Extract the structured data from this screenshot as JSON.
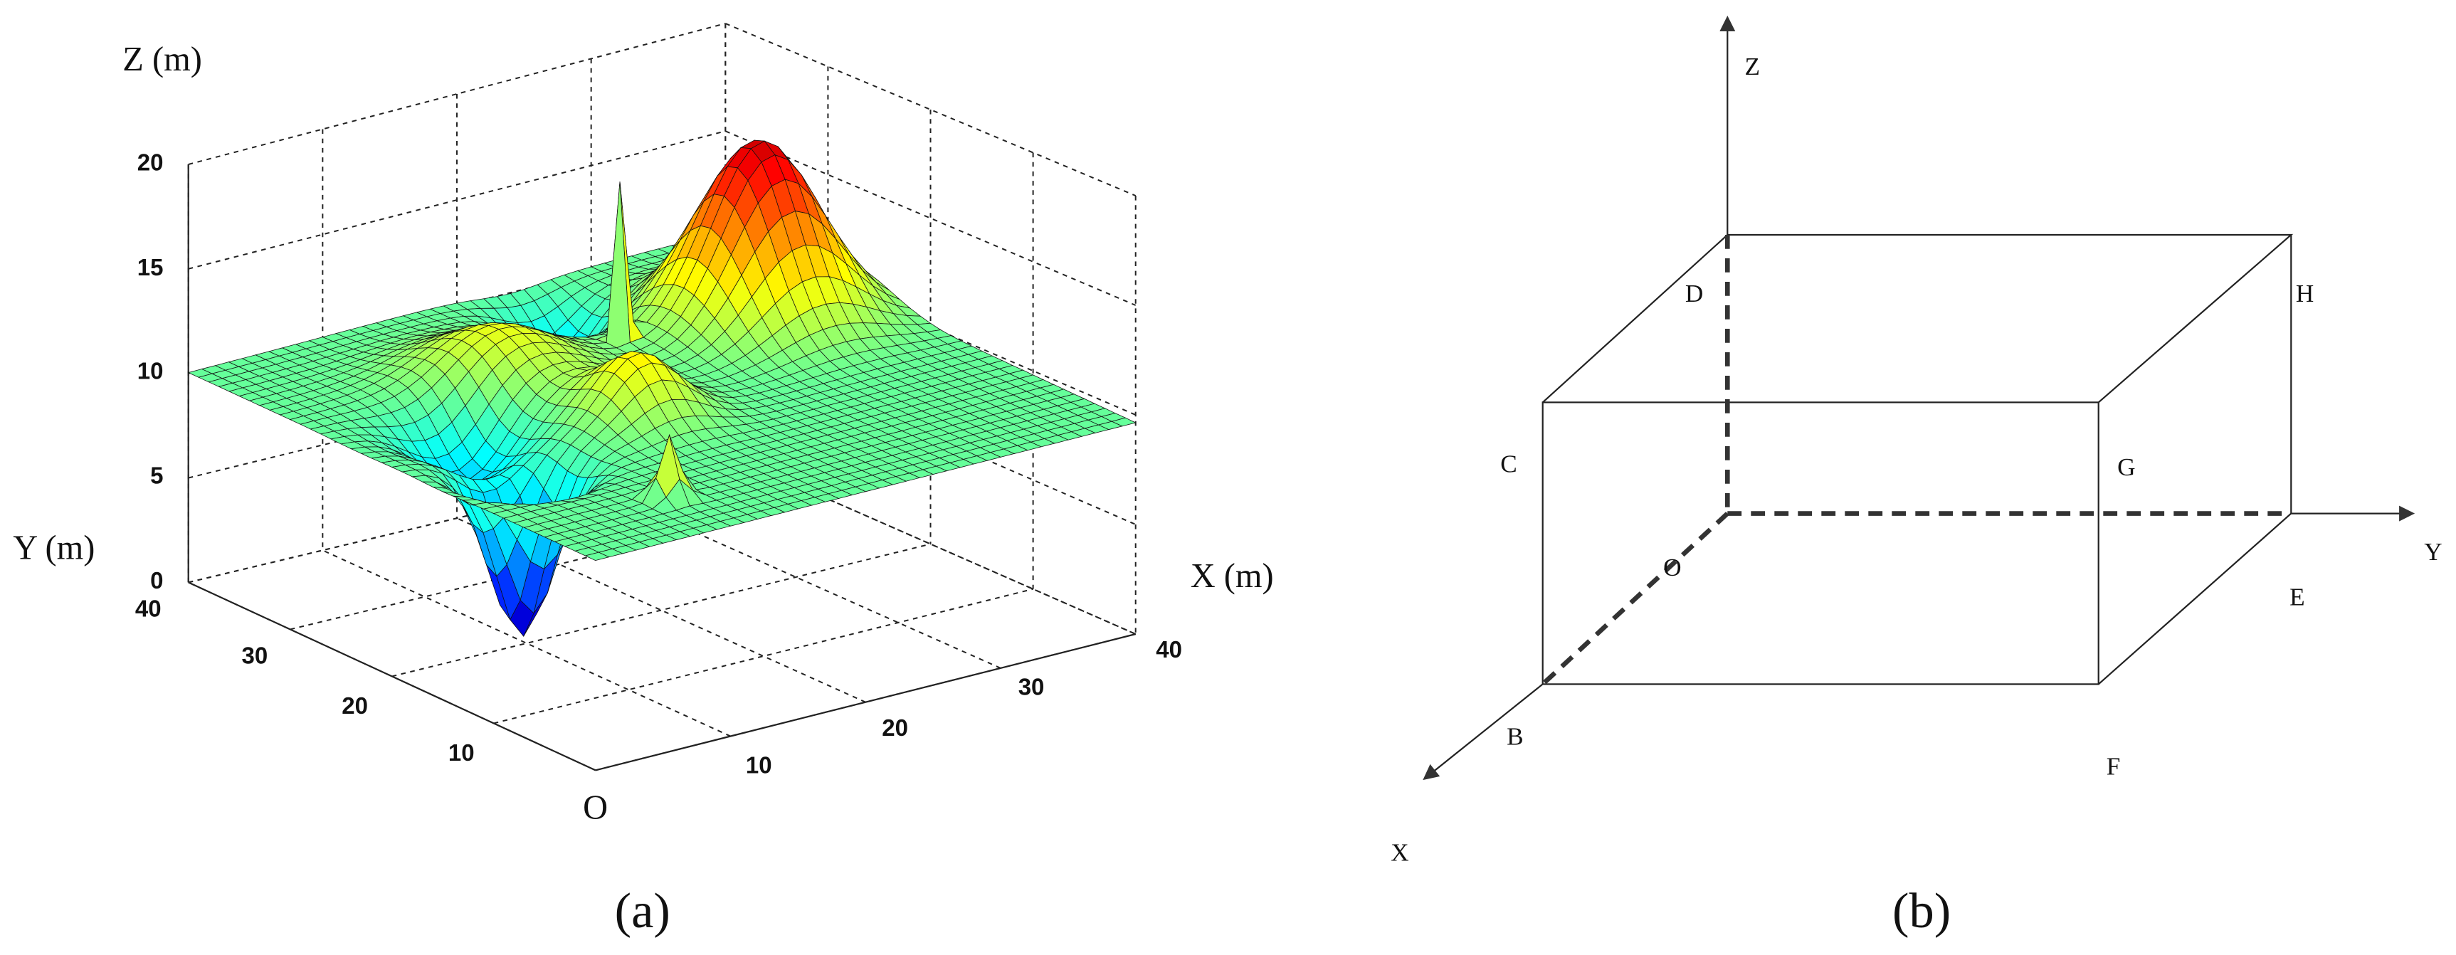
{
  "panel_a": {
    "z_axis_label": "Z (m)",
    "y_axis_label": "Y (m)",
    "x_axis_label": "X (m)",
    "origin_label": "O",
    "z_ticks": [
      "0",
      "5",
      "10",
      "15",
      "20"
    ],
    "y_ticks": [
      "40",
      "30",
      "20",
      "10"
    ],
    "x_ticks": [
      "10",
      "20",
      "30",
      "40"
    ],
    "caption": "(a)"
  },
  "panel_b": {
    "axis_labels": {
      "z": "Z",
      "y": "Y",
      "x": "X"
    },
    "points": {
      "D": "D",
      "H": "H",
      "C": "C",
      "G": "G",
      "O": "O",
      "E": "E",
      "B": "B",
      "F": "F"
    },
    "caption": "(b)"
  }
}
